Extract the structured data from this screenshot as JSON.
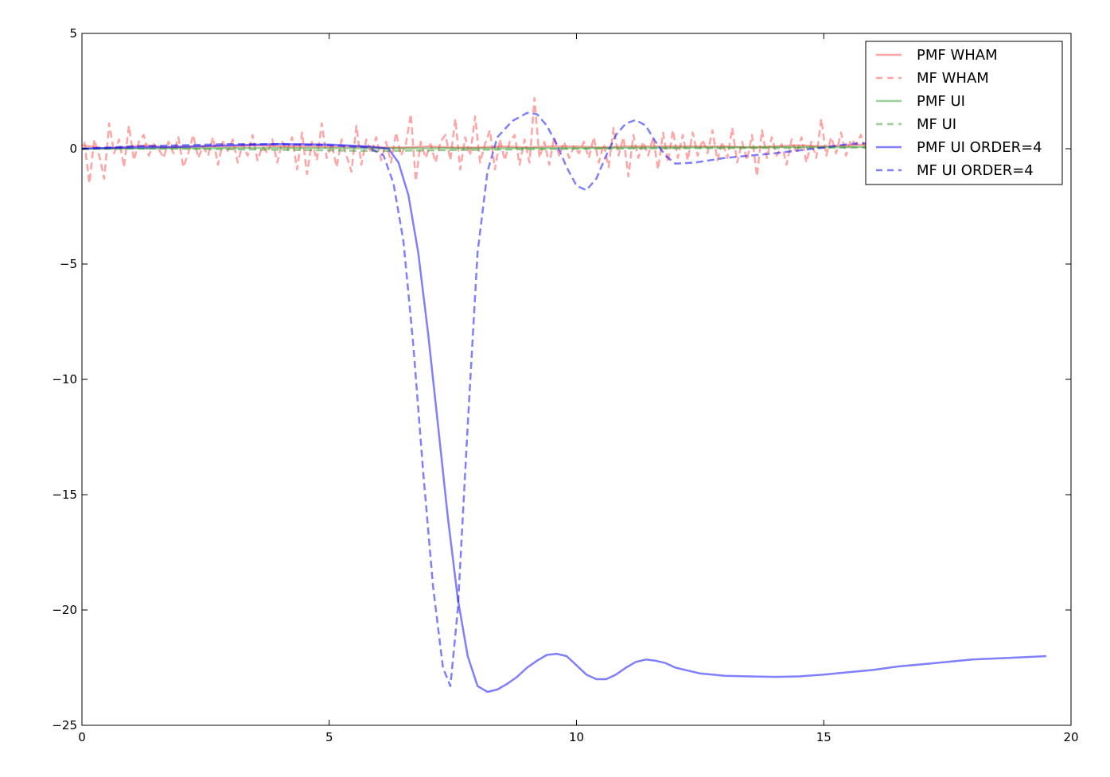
{
  "chart_data": {
    "type": "line",
    "title": "",
    "xlabel": "",
    "ylabel": "",
    "xlim": [
      0,
      20
    ],
    "ylim": [
      -25,
      5
    ],
    "xticks": [
      "0",
      "5",
      "10",
      "15",
      "20"
    ],
    "yticks": [
      "5",
      "0",
      "−5",
      "−10",
      "−15",
      "−20",
      "−25"
    ],
    "grid": false,
    "legend_position": "top-right",
    "series": [
      {
        "name": "PMF WHAM",
        "color": "#ff4c4c",
        "style": "solid",
        "x": [
          0,
          0.5,
          1.0,
          1.3,
          1.7,
          2.0,
          2.5,
          3.0,
          3.5,
          4.0,
          4.5,
          5.0,
          5.5,
          6.0,
          6.5,
          7.0,
          7.5,
          8.0,
          8.5,
          9.0,
          9.5,
          10.0,
          10.5,
          11.0,
          11.5,
          12.0,
          12.5,
          13.0,
          13.5,
          14.0,
          14.5,
          15.0,
          15.5,
          16.0
        ],
        "y": [
          0.15,
          0.0,
          0.1,
          0.15,
          0.05,
          0.1,
          0.1,
          0.1,
          0.15,
          0.1,
          0.1,
          0.1,
          0.1,
          0.05,
          0.05,
          0.1,
          0.05,
          0.05,
          0.1,
          0.05,
          0.1,
          0.1,
          0.05,
          0.1,
          0.1,
          0.1,
          0.1,
          0.1,
          0.05,
          0.1,
          0.15,
          0.1,
          0.15,
          0.2
        ]
      },
      {
        "name": "MF WHAM",
        "color": "#ff4c4c",
        "style": "dashed",
        "x": [
          0.05,
          0.15,
          0.25,
          0.35,
          0.45,
          0.55,
          0.65,
          0.75,
          0.85,
          0.95,
          1.05,
          1.15,
          1.25,
          1.35,
          1.45,
          1.55,
          1.65,
          1.75,
          1.85,
          1.95,
          2.05,
          2.15,
          2.25,
          2.35,
          2.45,
          2.55,
          2.65,
          2.75,
          2.85,
          2.95,
          3.05,
          3.15,
          3.25,
          3.35,
          3.45,
          3.55,
          3.65,
          3.75,
          3.85,
          3.95,
          4.05,
          4.15,
          4.25,
          4.35,
          4.45,
          4.55,
          4.65,
          4.75,
          4.85,
          4.95,
          5.05,
          5.15,
          5.25,
          5.35,
          5.45,
          5.55,
          5.65,
          5.75,
          5.85,
          5.95,
          6.05,
          6.15,
          6.25,
          6.35,
          6.45,
          6.55,
          6.65,
          6.75,
          6.85,
          6.95,
          7.05,
          7.15,
          7.25,
          7.35,
          7.45,
          7.55,
          7.65,
          7.75,
          7.85,
          7.95,
          8.05,
          8.15,
          8.25,
          8.35,
          8.45,
          8.55,
          8.65,
          8.75,
          8.85,
          8.95,
          9.05,
          9.15,
          9.25,
          9.35,
          9.45,
          9.55,
          9.65,
          9.75,
          9.85,
          9.95,
          10.05,
          10.15,
          10.25,
          10.35,
          10.45,
          10.55,
          10.65,
          10.75,
          10.85,
          10.95,
          11.05,
          11.15,
          11.25,
          11.35,
          11.45,
          11.55,
          11.65,
          11.75,
          11.85,
          11.95,
          12.05,
          12.15,
          12.25,
          12.35,
          12.45,
          12.55,
          12.65,
          12.75,
          12.85,
          12.95,
          13.05,
          13.15,
          13.25,
          13.35,
          13.45,
          13.55,
          13.65,
          13.75,
          13.85,
          13.95,
          14.05,
          14.15,
          14.25,
          14.35,
          14.45,
          14.55,
          14.65,
          14.75,
          14.85,
          14.95,
          15.05,
          15.15,
          15.25,
          15.35,
          15.45,
          15.55,
          15.65,
          15.75,
          15.85
        ],
        "y": [
          0.3,
          -1.5,
          0.4,
          -0.3,
          -1.3,
          1.1,
          -0.2,
          0.4,
          -0.8,
          1.0,
          -0.5,
          0.3,
          0.6,
          -0.3,
          0.2,
          0.0,
          -0.4,
          0.3,
          -0.2,
          0.5,
          -0.8,
          -0.2,
          0.6,
          -0.4,
          0.1,
          -0.3,
          0.5,
          -0.7,
          0.3,
          -0.1,
          0.4,
          -0.6,
          0.2,
          -0.3,
          0.6,
          -0.5,
          0.1,
          -0.2,
          0.4,
          -0.6,
          0.3,
          -0.1,
          0.5,
          -0.9,
          0.7,
          -1.1,
          0.3,
          -0.5,
          1.1,
          -0.4,
          0.2,
          -0.8,
          0.4,
          -0.3,
          -1.0,
          1.0,
          -0.7,
          0.4,
          -0.2,
          0.5,
          -0.5,
          0.3,
          -0.6,
          0.7,
          -0.3,
          0.2,
          1.5,
          -1.4,
          0.3,
          -0.4,
          0.2,
          -0.6,
          0.3,
          0.6,
          -0.5,
          1.3,
          -0.9,
          0.5,
          -0.3,
          1.4,
          -0.6,
          0.2,
          0.8,
          -0.9,
          0.4,
          -0.5,
          0.3,
          0.6,
          -0.7,
          0.4,
          -0.6,
          2.2,
          -0.4,
          0.3,
          -0.7,
          0.5,
          -0.3,
          0.3,
          -0.4,
          0.1,
          -0.2,
          0.3,
          -0.4,
          0.5,
          -0.6,
          0.2,
          -0.8,
          0.9,
          -0.3,
          0.5,
          -1.2,
          0.6,
          -0.4,
          0.3,
          -0.3,
          0.5,
          -0.9,
          0.7,
          -0.6,
          0.8,
          -0.4,
          0.6,
          -0.5,
          0.7,
          -0.3,
          0.4,
          -0.2,
          0.8,
          -0.5,
          0.3,
          -0.4,
          0.9,
          -0.6,
          0.3,
          -0.5,
          0.6,
          -1.2,
          0.8,
          -0.4,
          0.5,
          -0.3,
          0.2,
          -0.7,
          0.4,
          -0.2,
          0.5,
          -0.6,
          0.3,
          -0.4,
          1.3,
          -0.3,
          0.5,
          -0.2,
          0.7,
          -0.3,
          0.4,
          0.2,
          0.6,
          -0.1
        ]
      },
      {
        "name": "PMF UI",
        "color": "#33a033",
        "style": "solid",
        "x": [
          0,
          2,
          4,
          6,
          8,
          10,
          12,
          14,
          16
        ],
        "y": [
          0.0,
          0.02,
          0.03,
          0.02,
          0.02,
          0.03,
          0.05,
          0.07,
          0.08
        ]
      },
      {
        "name": "MF UI",
        "color": "#33a033",
        "style": "dashed",
        "x": [
          0,
          2,
          4,
          6,
          8,
          10,
          12,
          14,
          16
        ],
        "y": [
          0.0,
          0.0,
          -0.05,
          -0.1,
          -0.05,
          0.0,
          0.02,
          0.03,
          0.05
        ]
      },
      {
        "name": "PMF UI ORDER=4",
        "color": "#0000ff",
        "style": "solid",
        "x": [
          0,
          1,
          2,
          3,
          4,
          5,
          5.8,
          6.2,
          6.4,
          6.6,
          6.8,
          7.0,
          7.2,
          7.4,
          7.6,
          7.8,
          8.0,
          8.2,
          8.4,
          8.6,
          8.8,
          9.0,
          9.2,
          9.4,
          9.6,
          9.8,
          10.0,
          10.2,
          10.4,
          10.6,
          10.8,
          11.0,
          11.2,
          11.4,
          11.6,
          11.8,
          12.0,
          12.5,
          13.0,
          13.5,
          14.0,
          14.5,
          15.0,
          15.5,
          16.0,
          16.5,
          17.0,
          17.5,
          18.0,
          18.5,
          19.0,
          19.5
        ],
        "y": [
          0.0,
          0.05,
          0.08,
          0.15,
          0.2,
          0.18,
          0.1,
          0.0,
          -0.6,
          -2.0,
          -4.5,
          -8.0,
          -12.0,
          -16.0,
          -19.5,
          -22.0,
          -23.3,
          -23.55,
          -23.45,
          -23.2,
          -22.9,
          -22.5,
          -22.2,
          -21.95,
          -21.9,
          -22.0,
          -22.4,
          -22.8,
          -23.0,
          -23.0,
          -22.8,
          -22.5,
          -22.25,
          -22.15,
          -22.2,
          -22.3,
          -22.5,
          -22.75,
          -22.85,
          -22.88,
          -22.9,
          -22.88,
          -22.8,
          -22.7,
          -22.6,
          -22.45,
          -22.35,
          -22.25,
          -22.15,
          -22.1,
          -22.05,
          -22.0
        ]
      },
      {
        "name": "MF UI ORDER=4",
        "color": "#0000ff",
        "style": "dashed",
        "x": [
          0,
          1,
          2,
          3,
          4,
          5,
          5.8,
          6.1,
          6.3,
          6.5,
          6.7,
          6.9,
          7.1,
          7.3,
          7.45,
          7.6,
          7.8,
          8.0,
          8.2,
          8.4,
          8.7,
          9.0,
          9.2,
          9.4,
          9.6,
          9.8,
          10.0,
          10.2,
          10.4,
          10.6,
          10.8,
          11.0,
          11.2,
          11.4,
          11.6,
          11.8,
          12.0,
          12.4,
          13.0,
          14.0,
          15.0,
          15.5,
          16.0
        ],
        "y": [
          0.0,
          0.1,
          0.15,
          0.2,
          0.2,
          0.15,
          0.05,
          -0.3,
          -1.5,
          -4.0,
          -8.5,
          -14.0,
          -19.0,
          -22.5,
          -23.3,
          -20.0,
          -12.0,
          -4.5,
          -1.0,
          0.5,
          1.2,
          1.55,
          1.5,
          1.0,
          0.2,
          -0.8,
          -1.6,
          -1.8,
          -1.3,
          -0.3,
          0.6,
          1.1,
          1.25,
          1.0,
          0.3,
          -0.3,
          -0.65,
          -0.6,
          -0.4,
          -0.2,
          0.05,
          0.2,
          0.25
        ]
      }
    ]
  }
}
